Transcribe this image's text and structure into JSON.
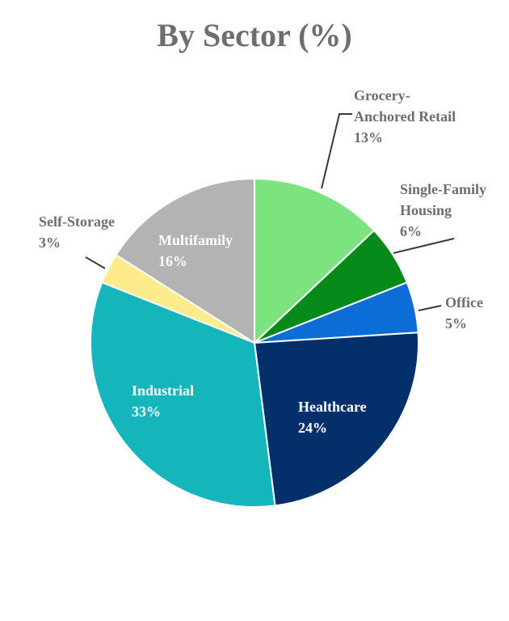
{
  "chart_data": {
    "type": "pie",
    "title": "By Sector (%)",
    "start_angle_deg": 0,
    "direction": "clockwise",
    "slices": [
      {
        "name": "Grocery-Anchored Retail",
        "value": 13,
        "label_lines": [
          "Grocery-",
          "Anchored Retail",
          "13%"
        ],
        "color": "#7de37f",
        "label_outside": true,
        "text_color": "#6e6e6e"
      },
      {
        "name": "Single-Family Housing",
        "value": 6,
        "label_lines": [
          "Single-Family",
          "Housing",
          "6%"
        ],
        "color": "#068a1a",
        "label_outside": true,
        "text_color": "#6e6e6e"
      },
      {
        "name": "Office",
        "value": 5,
        "label_lines": [
          "Office",
          "5%"
        ],
        "color": "#0d6dd6",
        "label_outside": true,
        "text_color": "#6e6e6e"
      },
      {
        "name": "Healthcare",
        "value": 24,
        "label_lines": [
          "Healthcare",
          "24%"
        ],
        "color": "#03306b",
        "label_outside": false,
        "text_color": "#ffffff"
      },
      {
        "name": "Industrial",
        "value": 33,
        "label_lines": [
          "Industrial",
          "33%"
        ],
        "color": "#14b5bb",
        "label_outside": false,
        "text_color": "#ffffff"
      },
      {
        "name": "Self-Storage",
        "value": 3,
        "label_lines": [
          "Self-Storage",
          "3%"
        ],
        "color": "#fdeb8c",
        "label_outside": true,
        "text_color": "#6e6e6e"
      },
      {
        "name": "Multifamily",
        "value": 16,
        "label_lines": [
          "Multifamily",
          "16%"
        ],
        "color": "#b3b3b3",
        "label_outside": false,
        "text_color": "#ffffff"
      }
    ]
  }
}
